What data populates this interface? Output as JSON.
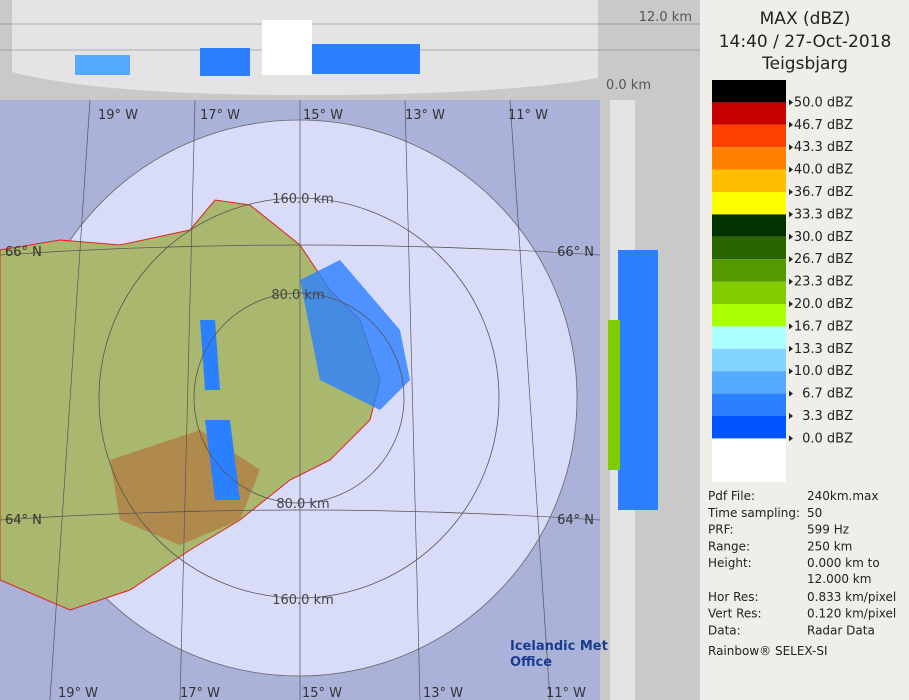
{
  "header": {
    "title": "MAX (dBZ)",
    "time": "14:40 / 27-Oct-2018",
    "site": "Teigsbjarg"
  },
  "legend": [
    {
      "label": "50.0 dBZ",
      "color": "#000000"
    },
    {
      "label": "46.7 dBZ",
      "color": "#c80000"
    },
    {
      "label": "43.3 dBZ",
      "color": "#ff4000"
    },
    {
      "label": "40.0 dBZ",
      "color": "#ff8000"
    },
    {
      "label": "36.7 dBZ",
      "color": "#ffbf00"
    },
    {
      "label": "33.3 dBZ",
      "color": "#ffff00"
    },
    {
      "label": "30.0 dBZ",
      "color": "#003300"
    },
    {
      "label": "26.7 dBZ",
      "color": "#2a6600"
    },
    {
      "label": "23.3 dBZ",
      "color": "#559900"
    },
    {
      "label": "20.0 dBZ",
      "color": "#80cc00"
    },
    {
      "label": "16.7 dBZ",
      "color": "#aaff00"
    },
    {
      "label": "13.3 dBZ",
      "color": "#aaffff"
    },
    {
      "label": "10.0 dBZ",
      "color": "#80d4ff"
    },
    {
      "label": "6.7 dBZ",
      "color": "#55aaff"
    },
    {
      "label": "3.3 dBZ",
      "color": "#2a80ff"
    },
    {
      "label": "0.0 dBZ",
      "color": "#0055ff"
    }
  ],
  "info": [
    {
      "label": "Pdf File:",
      "lines": [
        "240km.max"
      ]
    },
    {
      "label": "Time sampling:",
      "lines": [
        "50"
      ]
    },
    {
      "label": "PRF:",
      "lines": [
        "599 Hz"
      ]
    },
    {
      "label": "Range:",
      "lines": [
        "250 km"
      ]
    },
    {
      "label": "Height:",
      "lines": [
        "0.000 km to",
        "12.000 km"
      ]
    },
    {
      "label": "Hor Res:",
      "lines": [
        "0.833 km/pixel"
      ]
    },
    {
      "label": "Vert Res:",
      "lines": [
        "0.120 km/pixel"
      ]
    },
    {
      "label": "Data:",
      "lines": [
        "Radar Data"
      ]
    }
  ],
  "footer": "Rainbow® SELEX-SI",
  "map": {
    "lon_top": [
      "19° W",
      "17° W",
      "15° W",
      "13° W",
      "11° W"
    ],
    "lon_bottom": [
      "19° W",
      "17° W",
      "15° W",
      "13° W",
      "11° W"
    ],
    "lat_left": [
      "66° N",
      "64° N"
    ],
    "lat_right": [
      "66° N",
      "64° N"
    ],
    "ranges": [
      "160.0 km",
      "80.0 km",
      "80.0 km",
      "160.0 km"
    ],
    "logo": [
      "Icelandic Met",
      "Office"
    ]
  },
  "profile": {
    "top": "12.0 km",
    "bottom": "0.0 km"
  }
}
